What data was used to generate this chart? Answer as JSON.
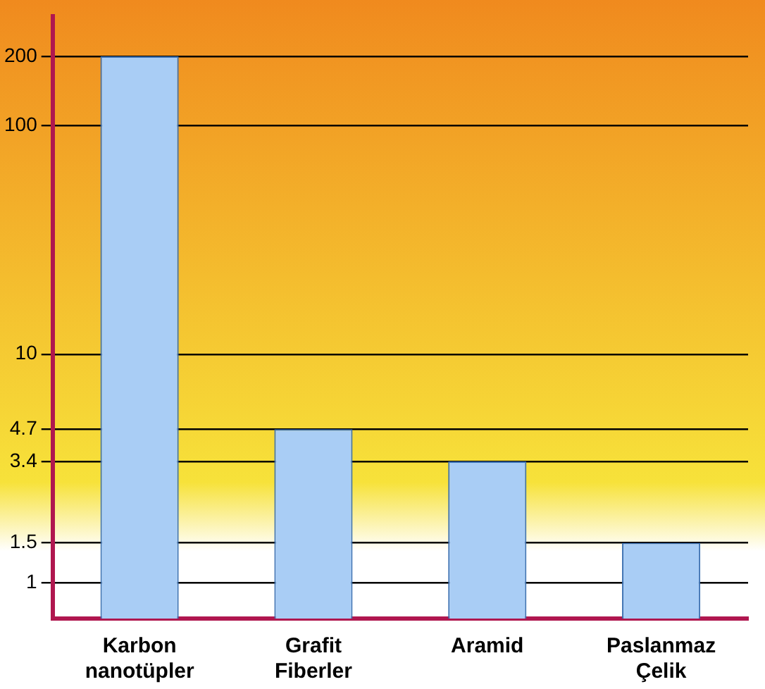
{
  "chart_data": {
    "type": "bar",
    "categories": [
      "Karbon nanotüpler",
      "Grafit Fiberler",
      "Aramid",
      "Paslanmaz Çelik"
    ],
    "values": [
      200,
      4.7,
      3.4,
      1.5
    ],
    "color": "#a9cdf5",
    "log": "y",
    "ylim": [
      0.7,
      300
    ],
    "yticks": [
      1,
      1.5,
      3.4,
      4.7,
      10,
      100,
      200
    ],
    "grid": "y"
  }
}
